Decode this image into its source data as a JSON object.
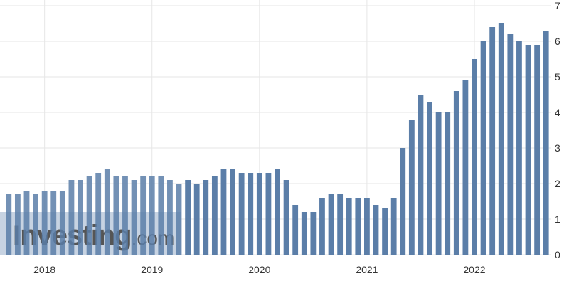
{
  "colors": {
    "bar": "#5b7ea8",
    "grid": "#e6e6e6",
    "axis": "#cccccc",
    "watermark_bg": "#c7d3e2",
    "watermark_text": "#555555"
  },
  "watermark": {
    "brand": "Investing",
    "suffix": ".com"
  },
  "chart_data": {
    "type": "bar",
    "title": "",
    "xlabel": "",
    "ylabel": "",
    "ylim": [
      0,
      7
    ],
    "y_ticks": [
      "0",
      "1",
      "2",
      "3",
      "4",
      "5",
      "6",
      "7"
    ],
    "y_axis_position": "right",
    "grid": true,
    "x_tick_labels": [
      {
        "label": "2018",
        "index": 4
      },
      {
        "label": "2019",
        "index": 16
      },
      {
        "label": "2020",
        "index": 28
      },
      {
        "label": "2021",
        "index": 40
      },
      {
        "label": "2022",
        "index": 52
      }
    ],
    "series": [
      {
        "values": [
          1.7,
          1.7,
          1.8,
          1.7,
          1.8,
          1.8,
          1.8,
          2.1,
          2.1,
          2.2,
          2.3,
          2.4,
          2.2,
          2.2,
          2.1,
          2.2,
          2.2,
          2.2,
          2.1,
          2.0,
          2.1,
          2.0,
          2.1,
          2.2,
          2.4,
          2.4,
          2.3,
          2.3,
          2.3,
          2.3,
          2.4,
          2.1,
          1.4,
          1.2,
          1.2,
          1.6,
          1.7,
          1.7,
          1.6,
          1.6,
          1.6,
          1.4,
          1.3,
          1.6,
          3.0,
          3.8,
          4.5,
          4.3,
          4.0,
          4.0,
          4.6,
          4.9,
          5.5,
          6.0,
          6.4,
          6.5,
          6.2,
          6.0,
          5.9,
          5.9,
          6.3
        ]
      }
    ]
  }
}
